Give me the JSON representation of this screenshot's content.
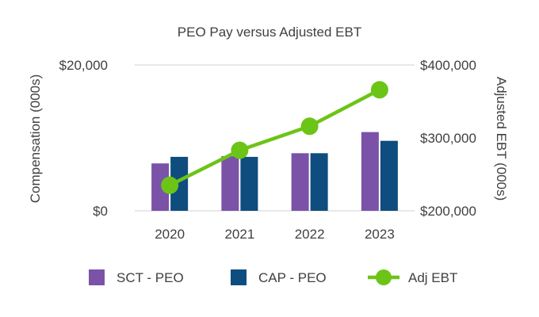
{
  "chart_data": {
    "type": "bar",
    "title": "PEO Pay versus Adjusted EBT",
    "categories": [
      "2020",
      "2021",
      "2022",
      "2023"
    ],
    "ylabel_left": "Compensation (000s)",
    "ylabel_right": "Adjusted EBT (000s)",
    "ylim_left": [
      0,
      20000
    ],
    "ylim_right": [
      200000,
      400000
    ],
    "yticks_left": [
      "$0",
      "$20,000"
    ],
    "yticks_right": [
      "$200,000",
      "$300,000",
      "$400,000"
    ],
    "gridlines": true,
    "legend_position": "bottom",
    "series": [
      {
        "name": "SCT - PEO",
        "type": "bar",
        "axis": "left",
        "color": "#7a52a8",
        "values": [
          6500,
          7500,
          7900,
          10800
        ]
      },
      {
        "name": "CAP - PEO",
        "type": "bar",
        "axis": "left",
        "color": "#0e4d7e",
        "values": [
          7400,
          7400,
          7900,
          9600
        ]
      },
      {
        "name": "Adj EBT",
        "type": "line",
        "axis": "right",
        "color": "#6cc417",
        "values": [
          235000,
          283000,
          316000,
          366000
        ]
      }
    ]
  }
}
